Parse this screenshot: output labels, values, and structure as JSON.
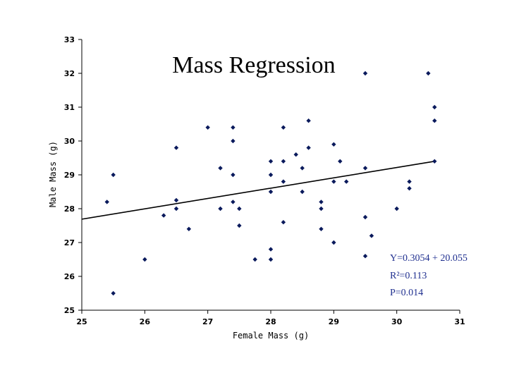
{
  "chart_data": {
    "type": "scatter",
    "title": "Mass Regression",
    "xlabel": "Female Mass (g)",
    "ylabel": "Male Mass (g)",
    "xlim": [
      25,
      31
    ],
    "ylim": [
      25,
      33
    ],
    "xticks": [
      "25",
      "26",
      "27",
      "28",
      "29",
      "30",
      "31"
    ],
    "yticks": [
      "25",
      "26",
      "27",
      "28",
      "29",
      "30",
      "31",
      "32",
      "33"
    ],
    "grid": false,
    "legend": "none",
    "point_color": "#0a1a5c",
    "stat_color": "#1f2f8f",
    "points": [
      {
        "x": 25.4,
        "y": 28.2
      },
      {
        "x": 25.5,
        "y": 29.0
      },
      {
        "x": 25.5,
        "y": 25.5
      },
      {
        "x": 26.0,
        "y": 26.5
      },
      {
        "x": 26.3,
        "y": 27.8
      },
      {
        "x": 26.5,
        "y": 29.8
      },
      {
        "x": 26.5,
        "y": 28.25
      },
      {
        "x": 26.5,
        "y": 28.0
      },
      {
        "x": 26.7,
        "y": 27.4
      },
      {
        "x": 27.0,
        "y": 30.4
      },
      {
        "x": 27.2,
        "y": 29.2
      },
      {
        "x": 27.2,
        "y": 28.0
      },
      {
        "x": 27.4,
        "y": 30.4
      },
      {
        "x": 27.4,
        "y": 30.0
      },
      {
        "x": 27.4,
        "y": 29.0
      },
      {
        "x": 27.4,
        "y": 28.2
      },
      {
        "x": 27.5,
        "y": 28.0
      },
      {
        "x": 27.5,
        "y": 27.5
      },
      {
        "x": 27.75,
        "y": 26.5
      },
      {
        "x": 28.0,
        "y": 29.4
      },
      {
        "x": 28.0,
        "y": 29.0
      },
      {
        "x": 28.0,
        "y": 28.5
      },
      {
        "x": 28.0,
        "y": 26.8
      },
      {
        "x": 28.0,
        "y": 26.5
      },
      {
        "x": 28.2,
        "y": 30.4
      },
      {
        "x": 28.2,
        "y": 29.4
      },
      {
        "x": 28.2,
        "y": 28.8
      },
      {
        "x": 28.2,
        "y": 27.6
      },
      {
        "x": 28.4,
        "y": 29.6
      },
      {
        "x": 28.5,
        "y": 29.2
      },
      {
        "x": 28.5,
        "y": 28.5
      },
      {
        "x": 28.6,
        "y": 30.6
      },
      {
        "x": 28.6,
        "y": 29.8
      },
      {
        "x": 28.8,
        "y": 28.2
      },
      {
        "x": 28.8,
        "y": 28.0
      },
      {
        "x": 28.8,
        "y": 27.4
      },
      {
        "x": 29.0,
        "y": 29.9
      },
      {
        "x": 29.0,
        "y": 28.8
      },
      {
        "x": 29.0,
        "y": 27.0
      },
      {
        "x": 29.1,
        "y": 29.4
      },
      {
        "x": 29.2,
        "y": 28.8
      },
      {
        "x": 29.5,
        "y": 32.0
      },
      {
        "x": 29.5,
        "y": 29.2
      },
      {
        "x": 29.5,
        "y": 27.75
      },
      {
        "x": 29.5,
        "y": 26.6
      },
      {
        "x": 29.6,
        "y": 27.2
      },
      {
        "x": 30.0,
        "y": 28.0
      },
      {
        "x": 30.2,
        "y": 28.8
      },
      {
        "x": 30.2,
        "y": 28.6
      },
      {
        "x": 30.5,
        "y": 32.0
      },
      {
        "x": 30.6,
        "y": 31.0
      },
      {
        "x": 30.6,
        "y": 30.6
      },
      {
        "x": 30.6,
        "y": 29.4
      }
    ],
    "trendline": {
      "slope": 0.3054,
      "intercept": 20.055
    },
    "annotations": [
      "Y=0.3054 + 20.055",
      "R²=0.113",
      "P=0.014"
    ]
  }
}
